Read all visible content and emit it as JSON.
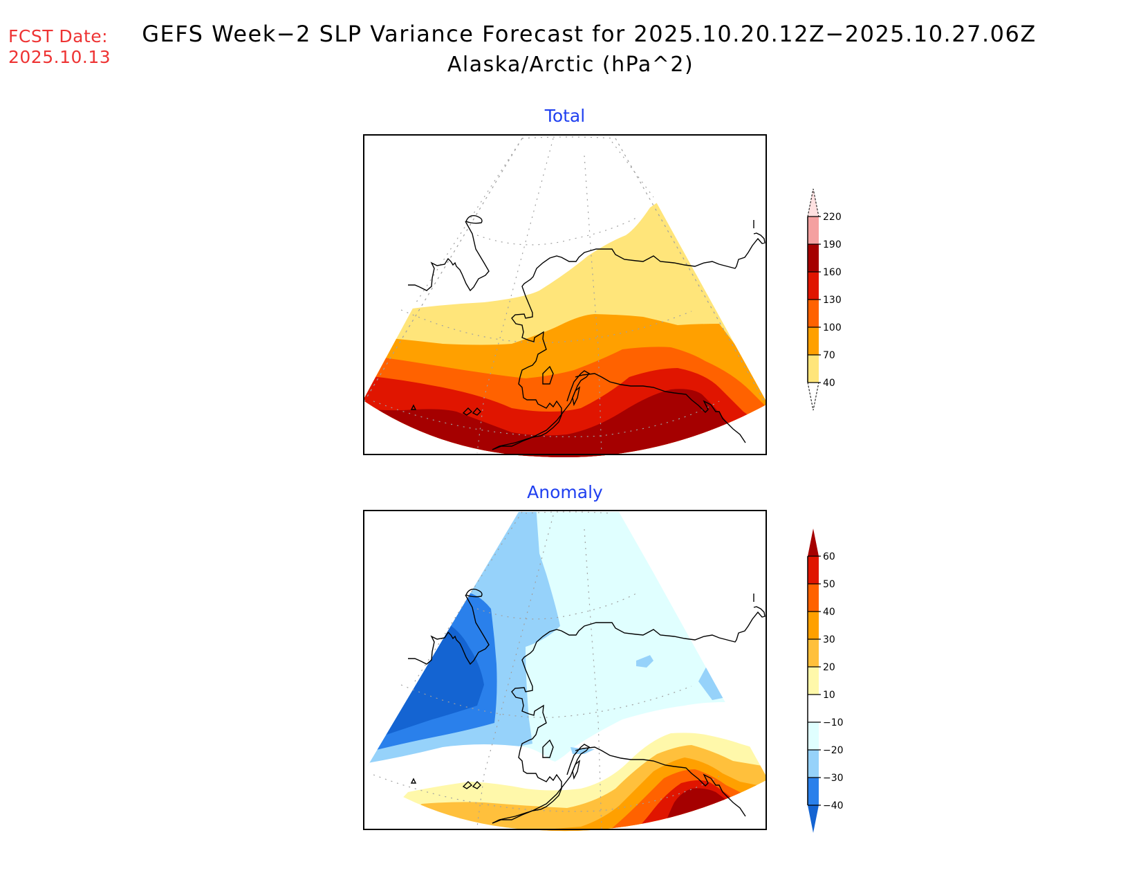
{
  "header": {
    "fcst_label": "FCST Date:",
    "fcst_date": "2025.10.13",
    "title_line1": "GEFS Week−2 SLP Variance Forecast for 2025.10.20.12Z−2025.10.27.06Z",
    "title_line2": "Alaska/Arctic (hPa^2)"
  },
  "panels": [
    {
      "title": "Total",
      "colorbar": {
        "levels": [
          "40",
          "70",
          "100",
          "130",
          "160",
          "190",
          "220"
        ],
        "colors": [
          "#ffe57a",
          "#ffa000",
          "#ff6200",
          "#e01500",
          "#a50000",
          "#f4a0a0",
          "#ffe1e1"
        ],
        "below_color": "#ffffff",
        "above_color": "#ffe1e1"
      }
    },
    {
      "title": "Anomaly",
      "colorbar": {
        "levels": [
          "−40",
          "−30",
          "−20",
          "−10",
          "10",
          "20",
          "30",
          "40",
          "50",
          "60"
        ],
        "colors": [
          "#2a80eb",
          "#96d2fa",
          "#e0ffff",
          "#ffffff",
          "#fff8aa",
          "#ffc03c",
          "#ffa000",
          "#ff6200",
          "#e01500"
        ],
        "below_color": "#1464d2",
        "above_color": "#a50000"
      }
    }
  ],
  "chart_data": [
    {
      "type": "heatmap",
      "title": "Total",
      "units": "hPa^2",
      "region": "Alaska/Arctic",
      "contour_levels": [
        40,
        70,
        100,
        130,
        160,
        190,
        220
      ],
      "pattern": "Variance increases southward from <40 over Arctic/northern Alaska to >160 over the Gulf of Alaska and North Pacific south of the Aleutians",
      "max_band": "160-190"
    },
    {
      "type": "heatmap",
      "title": "Anomaly",
      "units": "hPa^2",
      "region": "Alaska/Arctic",
      "contour_levels": [
        -40,
        -30,
        -20,
        -10,
        10,
        20,
        30,
        40,
        50,
        60
      ],
      "pattern": "Negative anomalies (< -40) over eastern Siberia/Chukotka and Bering Strait; -10 to -20 over mainland Alaska; positive anomalies up to >60 in the Gulf of Alaska",
      "min_band": "< -40",
      "max_band": "> 60"
    }
  ]
}
